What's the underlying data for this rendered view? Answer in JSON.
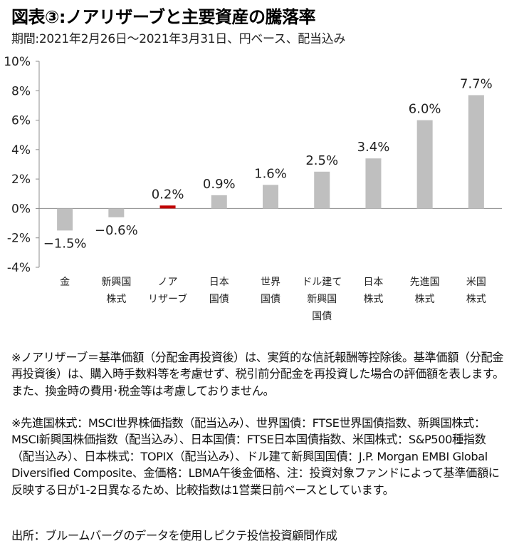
{
  "header": {
    "title": "図表③:ノアリザーブと主要資産の騰落率",
    "subtitle": "期間:2021年2月26日～2021年3月31日、円ベース、配当込み"
  },
  "colors": {
    "bar_default": "#bfbfbf",
    "bar_highlight": "#c00000",
    "axis": "#8c8c8c"
  },
  "chart_data": {
    "type": "bar",
    "categories": [
      [
        "金"
      ],
      [
        "新興国",
        "株式"
      ],
      [
        "ノア",
        "リザーブ"
      ],
      [
        "日本",
        "国債"
      ],
      [
        "世界",
        "国債"
      ],
      [
        "ドル建て",
        "新興国",
        "国債"
      ],
      [
        "日本",
        "株式"
      ],
      [
        "先進国",
        "株式"
      ],
      [
        "米国",
        "株式"
      ]
    ],
    "values": [
      -1.5,
      -0.6,
      0.2,
      0.9,
      1.6,
      2.5,
      3.4,
      6.0,
      7.7
    ],
    "data_labels": [
      "−1.5%",
      "−0.6%",
      "0.2%",
      "0.9%",
      "1.6%",
      "2.5%",
      "3.4%",
      "6.0%",
      "7.7%"
    ],
    "highlight_index": 2,
    "ylim": [
      -4,
      10
    ],
    "yticks": [
      10,
      8,
      6,
      4,
      2,
      0,
      -2,
      -4
    ],
    "ytick_labels": [
      "10%",
      "8%",
      "6%",
      "4%",
      "2%",
      "0%",
      "-2%",
      "-4%"
    ],
    "grid": false
  },
  "notes": {
    "note1": "※ノアリザーブ＝基準価額（分配金再投資後）は、実質的な信託報酬等控除後。基準価額（分配金再投資後）は、購入時手数料等を考慮せず、税引前分配金を再投資した場合の評価額を表します。また、換金時の費用･税金等は考慮しておりません。",
    "note2": "※先進国株式：MSCI世界株価指数（配当込み）、世界国債：FTSE世界国債指数、新興国株式：MSCI新興国株価指数（配当込み）、日本国債：FTSE日本国債指数、米国株式：S&P500種指数（配当込み）、日本株式：TOPIX（配当込み）、ドル建て新興国国債：J.P. Morgan EMBI Global Diversified Composite、金価格：LBMA午後金価格、注：投資対象ファンドによって基準価額に反映する日が1-2日異なるため、比較指数は1営業日前ベースとしています。",
    "source": "出所：ブルームバーグのデータを使用しピクテ投信投資顧問作成"
  }
}
